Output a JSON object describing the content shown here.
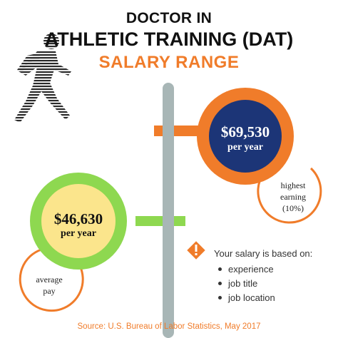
{
  "header": {
    "line1": "DOCTOR IN",
    "line2": "ATHLETIC TRAINING (DAT)",
    "line3": "SALARY RANGE"
  },
  "highest": {
    "amount": "$69,530",
    "period": "per year",
    "note_line1": "highest",
    "note_line2": "earning",
    "note_line3": "(10%)"
  },
  "average": {
    "amount": "$46,630",
    "period": "per year",
    "note_line1": "average",
    "note_line2": "pay"
  },
  "factors": {
    "heading": "Your salary is based on:",
    "items": [
      "experience",
      "job title",
      "job location"
    ]
  },
  "source": "Source: U.S. Bureau of Labor Statistics, May 2017",
  "icons": {
    "runner": "runner-silhouette-icon",
    "warning": "exclamation-diamond-icon"
  },
  "colors": {
    "orange": "#f07c2a",
    "green": "#8ed850",
    "navy": "#1c3577",
    "yellow": "#fbe58c",
    "pole": "#a8b6b6"
  }
}
